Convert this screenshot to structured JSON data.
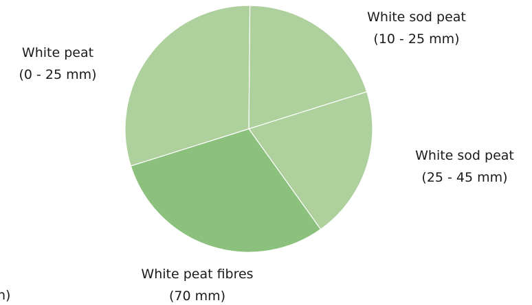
{
  "chart_data": {
    "type": "pie",
    "slices": [
      {
        "label_line1": "White sod peat",
        "label_line2": "(10 - 25 mm)",
        "value": 20,
        "color": "#aed09d"
      },
      {
        "label_line1": "White sod peat",
        "label_line2": "(25 - 45 mm)",
        "value": 20,
        "color": "#aed09d"
      },
      {
        "label_line1": "White peat fibres",
        "label_line2": "(70 mm)",
        "value": 30,
        "color": "#8bc17c"
      },
      {
        "label_line1": "White peat",
        "label_line2": "(0 - 25 mm)",
        "value": 30,
        "color": "#aed09d"
      }
    ],
    "partial_label_fragment": "n)",
    "edge_color": "#ffffff",
    "start": "top, clockwise"
  }
}
